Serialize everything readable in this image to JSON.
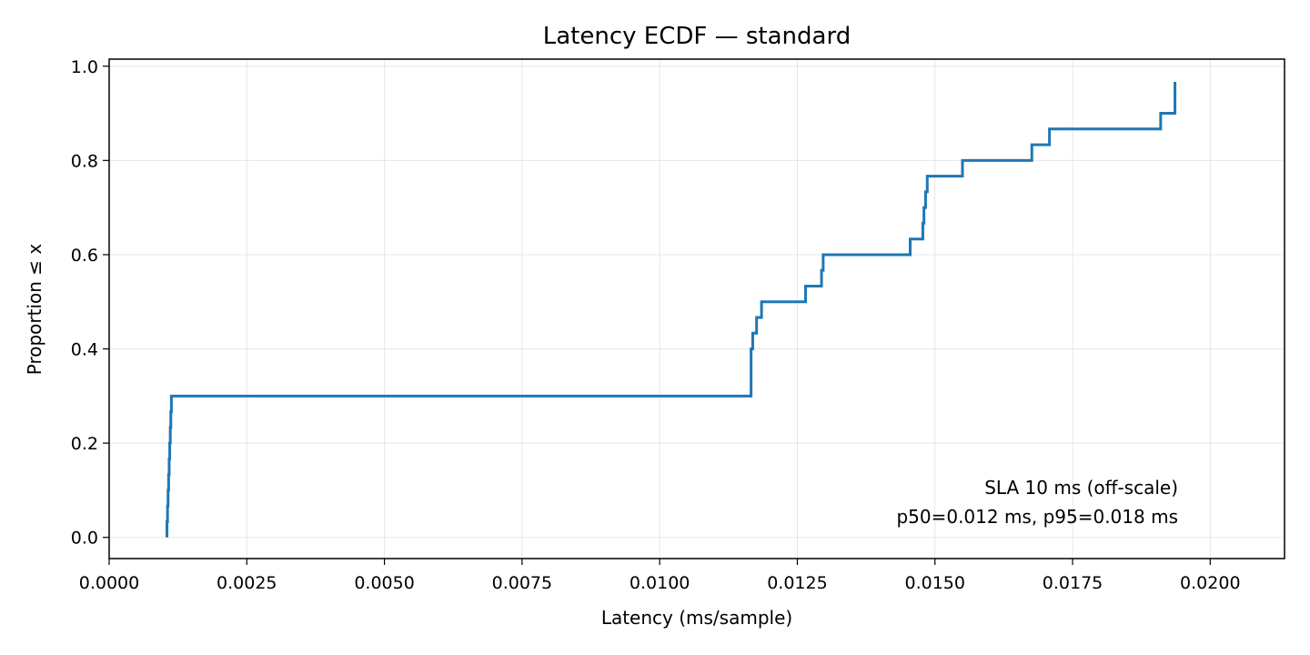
{
  "chart_data": {
    "type": "line",
    "step": true,
    "title": "Latency ECDF — standard",
    "xlabel": "Latency (ms/sample)",
    "ylabel": "Proportion ≤ x",
    "xlim": [
      0.0,
      0.02135
    ],
    "ylim": [
      -0.045,
      1.015
    ],
    "xticks": [
      "0.0000",
      "0.0025",
      "0.0050",
      "0.0075",
      "0.0100",
      "0.0125",
      "0.0150",
      "0.0175",
      "0.0200"
    ],
    "yticks": [
      "0.0",
      "0.2",
      "0.4",
      "0.6",
      "0.8",
      "1.0"
    ],
    "grid": true,
    "series": [
      {
        "color": "#1f77b4",
        "x": [
          0.00105,
          0.00105,
          0.00106,
          0.00107,
          0.00108,
          0.00109,
          0.0011,
          0.00111,
          0.00112,
          0.00113,
          0.01166,
          0.01169,
          0.01176,
          0.01185,
          0.01265,
          0.01294,
          0.01297,
          0.01455,
          0.01478,
          0.0148,
          0.01483,
          0.01486,
          0.0155,
          0.01676,
          0.01708,
          0.0191,
          0.01936
        ],
        "y": [
          0.0,
          0.0333,
          0.0667,
          0.1,
          0.1333,
          0.1667,
          0.2,
          0.2333,
          0.2667,
          0.3,
          0.4,
          0.4333,
          0.4667,
          0.5,
          0.5333,
          0.5667,
          0.6,
          0.6333,
          0.6667,
          0.7,
          0.7333,
          0.7667,
          0.8,
          0.8333,
          0.8667,
          0.9,
          0.9333
        ],
        "x_end": 0.01936,
        "y_end": 0.9667
      }
    ],
    "annotations": [
      "SLA 10 ms (off-scale)",
      "p50=0.012 ms, p95=0.018 ms"
    ]
  }
}
